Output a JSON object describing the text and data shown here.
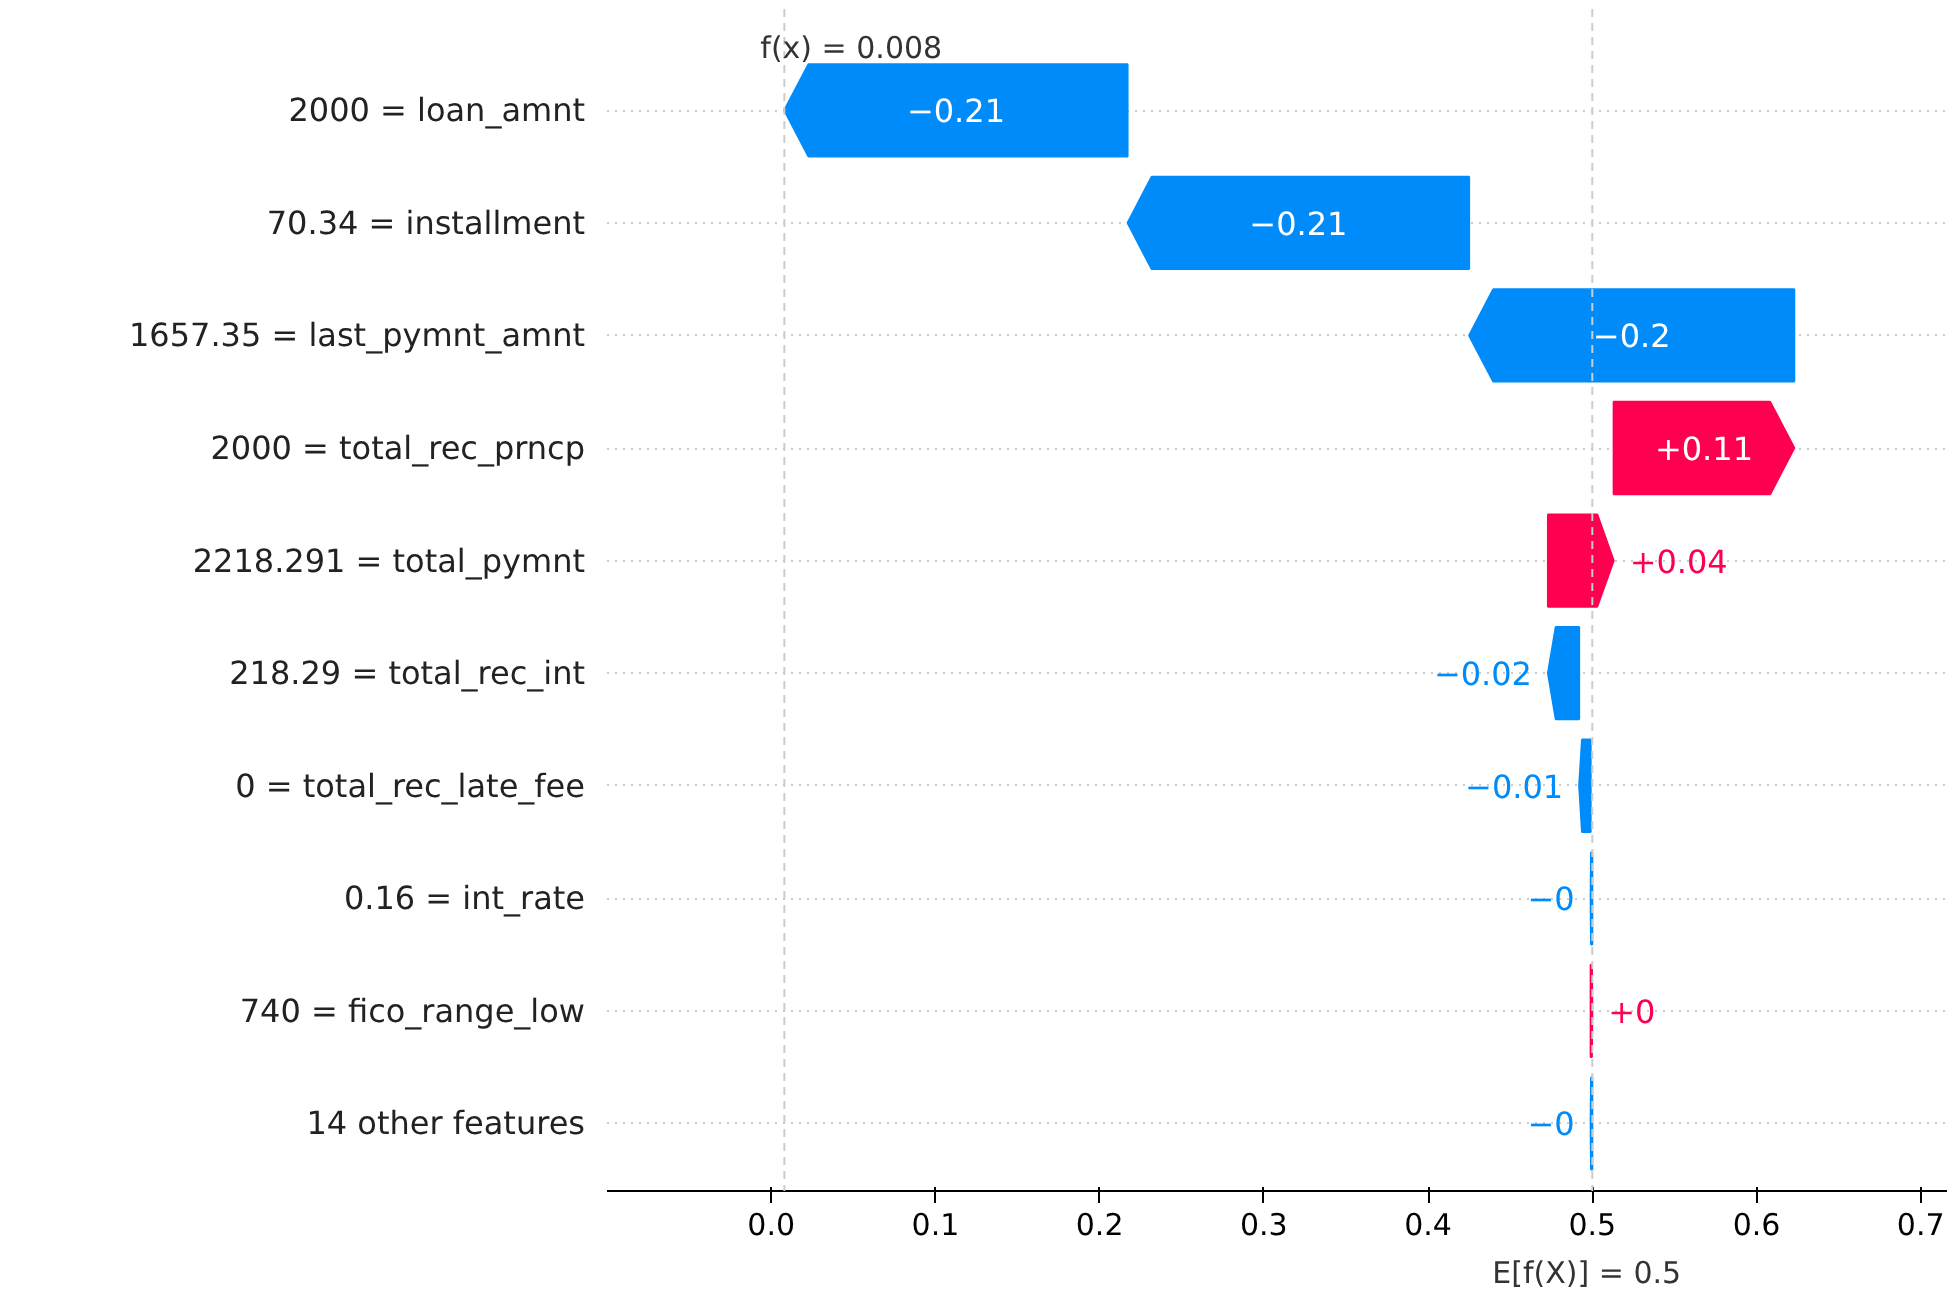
{
  "chart_data": {
    "type": "bar",
    "orientation": "horizontal",
    "categories": [
      "2000 = loan_amnt",
      "70.34 = installment",
      "1657.35 = last_pymnt_amnt",
      "2000 = total_rec_prncp",
      "2218.291 = total_pymnt",
      "218.29 = total_rec_int",
      "0 = total_rec_late_fee",
      "0.16 = int_rate",
      "740 = fico_range_low",
      "14 other features"
    ],
    "base": [
      0.217,
      0.425,
      0.623,
      0.513,
      0.473,
      0.492,
      0.499,
      0.5,
      0.499,
      0.5
    ],
    "values": [
      -0.209,
      -0.208,
      -0.198,
      0.11,
      0.04,
      -0.019,
      -0.007,
      -0.001,
      0.001,
      -0.001
    ],
    "value_labels": [
      "−0.21",
      "−0.21",
      "−0.2",
      "+0.11",
      "+0.04",
      "−0.02",
      "−0.01",
      "−0",
      "+0",
      "−0"
    ],
    "colors": [
      "#008bfb",
      "#008bfb",
      "#008bfb",
      "#ff0051",
      "#ff0051",
      "#008bfb",
      "#008bfb",
      "#008bfb",
      "#ff0051",
      "#008bfb"
    ],
    "xlim": [
      -0.1,
      0.716
    ],
    "xticks": [
      {
        "value": 0.0,
        "label": "0.0"
      },
      0.1,
      0.2,
      0.3,
      0.4,
      0.5,
      0.6,
      0.7
    ],
    "grid": "y",
    "ref_lines": [
      {
        "axis": "x",
        "value": 0.008,
        "label": "f(x) = 0.008",
        "color": "#cccccc",
        "line_style": "dashed"
      },
      {
        "axis": "x",
        "value": 0.5,
        "label": "E[f(X)] = 0.5",
        "color": "#cccccc",
        "line_style": "dashed"
      }
    ]
  }
}
